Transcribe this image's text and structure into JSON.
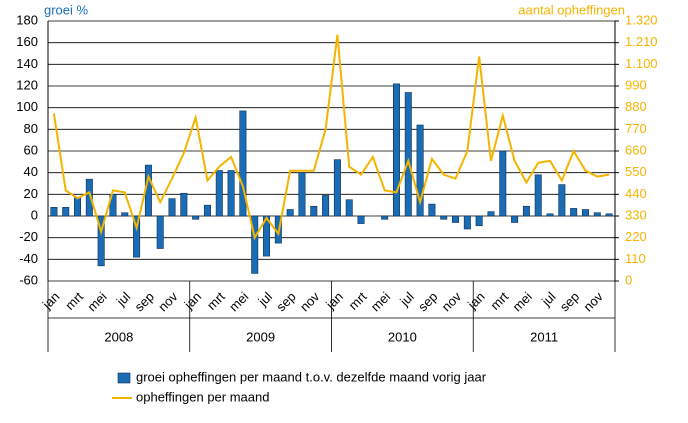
{
  "chart_data": {
    "type": "combo",
    "ylabel": "groei %",
    "y2label": "aantal opheffingen",
    "categories": [
      "jan",
      null,
      "mrt",
      null,
      "mei",
      null,
      "jul",
      null,
      "sep",
      null,
      "nov",
      null,
      "jan",
      null,
      "mrt",
      null,
      "mei",
      null,
      "jul",
      null,
      "sep",
      null,
      "nov",
      null,
      "jan",
      null,
      "mrt",
      null,
      "mei",
      null,
      "jul",
      null,
      "sep",
      null,
      "nov",
      null,
      "jan",
      null,
      "mrt",
      null,
      "mei",
      null,
      "jul",
      null,
      "sep",
      null,
      "nov",
      null
    ],
    "years": [
      "2008",
      "2009",
      "2010",
      "2011"
    ],
    "series": [
      {
        "name": "groei opheffingen per maand t.o.v. dezelfde maand vorig jaar",
        "type": "bar",
        "color": "#1a6db5",
        "values": [
          8,
          8,
          17,
          34,
          -46,
          20,
          3,
          -38,
          47,
          -30,
          16,
          21,
          -3,
          10,
          42,
          42,
          97,
          -53,
          -37,
          -25,
          6,
          40,
          9,
          19,
          52,
          15,
          -7,
          0,
          -3,
          122,
          114,
          84,
          11,
          -3,
          -6,
          -12,
          -9,
          4,
          60,
          -6,
          9,
          38,
          2,
          29,
          7,
          6,
          3,
          2
        ]
      },
      {
        "name": "opheffingen per maand",
        "type": "line",
        "axis": "y2",
        "color": "#f5b400",
        "values": [
          850,
          460,
          420,
          450,
          250,
          460,
          450,
          270,
          530,
          400,
          520,
          650,
          830,
          510,
          580,
          630,
          480,
          220,
          320,
          240,
          560,
          560,
          560,
          770,
          1250,
          580,
          540,
          630,
          460,
          450,
          610,
          400,
          620,
          540,
          520,
          660,
          1140,
          610,
          840,
          610,
          500,
          600,
          610,
          510,
          660,
          560,
          530,
          540
        ]
      }
    ],
    "ylim": [
      -60,
      180
    ],
    "yticks": [
      -60,
      -40,
      -20,
      0,
      20,
      40,
      60,
      80,
      100,
      120,
      140,
      160,
      180
    ],
    "y2lim": [
      0,
      1320
    ],
    "y2ticks": [
      0,
      110,
      220,
      330,
      440,
      550,
      660,
      770,
      880,
      990,
      {
        "value": 1100,
        "label": "1.100"
      },
      {
        "value": 1210,
        "label": "1.210"
      },
      {
        "value": 1320,
        "label": "1.320"
      }
    ],
    "grid": true
  }
}
